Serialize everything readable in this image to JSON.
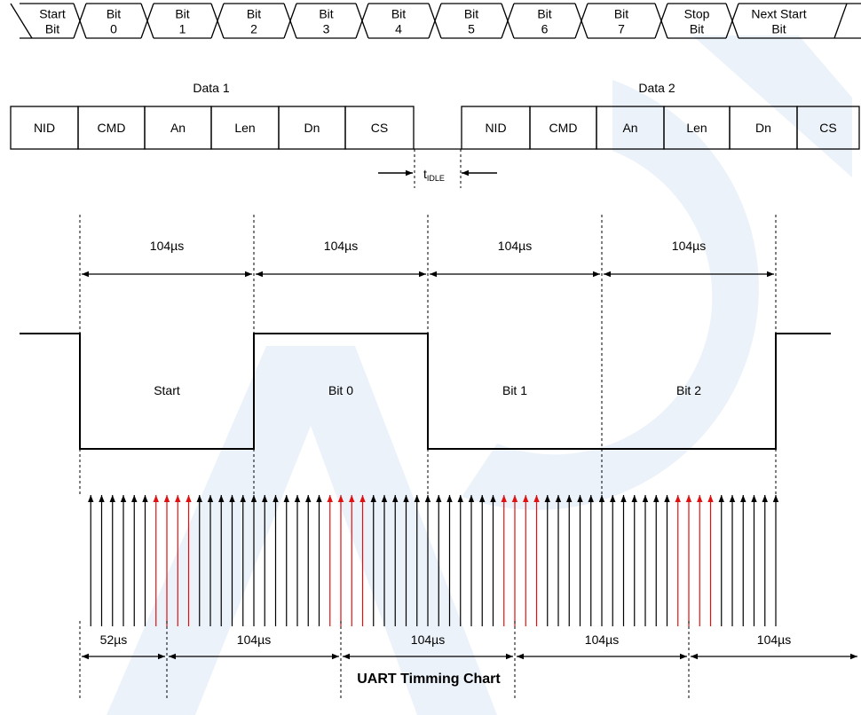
{
  "serial_frame": {
    "cells": [
      "Start Bit",
      "Bit 0",
      "Bit 1",
      "Bit 2",
      "Bit 3",
      "Bit 4",
      "Bit 5",
      "Bit 6",
      "Bit 7",
      "Stop Bit",
      "Next Start Bit"
    ]
  },
  "packets": {
    "data1_label": "Data 1",
    "data2_label": "Data 2",
    "fields": [
      "NID",
      "CMD",
      "An",
      "Len",
      "Dn",
      "CS"
    ],
    "idle_label": "t",
    "idle_sub": "IDLE"
  },
  "bit_timing": {
    "period_labels": [
      "104µs",
      "104µs",
      "104µs",
      "104µs"
    ],
    "bit_labels": [
      "Start",
      "Bit 0",
      "Bit 1",
      "Bit 2"
    ],
    "levels": [
      "low",
      "high",
      "low",
      "low"
    ],
    "samples_per_bit": 16,
    "sample_color_normal": "#000000",
    "sample_color_highlight": "#e01010",
    "highlight_samples": [
      7,
      8,
      9,
      10
    ]
  },
  "sampling": {
    "offset_labels": [
      "52µs",
      "104µs",
      "104µs",
      "104µs",
      "104µs"
    ]
  },
  "footer": {
    "title": "UART Timming Chart"
  },
  "colors": {
    "line": "#000000",
    "watermark": "#dce8f5"
  }
}
